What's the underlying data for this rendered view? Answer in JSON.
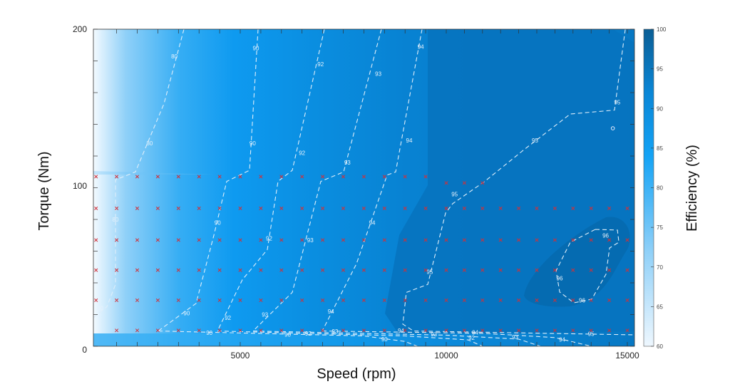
{
  "chart_data": {
    "type": "heatmap",
    "subtype": "filled contour efficiency map",
    "xlabel": "Speed (rpm)",
    "ylabel": "Torque (Nm)",
    "colorbar_label": "Efficiency (%)",
    "xlim": [
      1436,
      15200
    ],
    "ylim": [
      0,
      200
    ],
    "xticks": [
      5000,
      10000,
      15000
    ],
    "yticks": [
      0,
      100,
      200
    ],
    "colorbar_ticks": [
      60,
      65,
      70,
      75,
      80,
      85,
      90,
      95,
      100
    ],
    "colorbar_range": [
      60,
      100
    ],
    "colormap": [
      "#eef7fe",
      "#8fd0f8",
      "#14a3f5",
      "#0a86d6",
      "#0b5e95"
    ],
    "contours": [
      {
        "level": "80",
        "points": [
          [
            3633,
            200
          ],
          [
            3149,
            153
          ],
          [
            2457,
            110
          ],
          [
            1972,
            105
          ],
          [
            1972,
            39
          ],
          [
            1765,
            25
          ],
          [
            1436,
            18
          ]
        ],
        "labels": [
          [
            3400,
            183
          ],
          [
            2800,
            128
          ],
          [
            1972,
            80
          ],
          [
            1600,
            24
          ]
        ]
      },
      {
        "level": "90",
        "points": [
          [
            5433,
            200
          ],
          [
            5225,
            111
          ],
          [
            4671,
            104
          ],
          [
            4360,
            70
          ],
          [
            3927,
            27
          ],
          [
            3010,
            9.6
          ]
        ],
        "labels": [
          [
            5380,
            188
          ],
          [
            5300,
            128
          ],
          [
            4450,
            78
          ],
          [
            3700,
            21
          ]
        ]
      },
      {
        "level": "92",
        "points": [
          [
            7041,
            200
          ],
          [
            6263,
            111
          ],
          [
            5917,
            104
          ],
          [
            5657,
            61
          ],
          [
            5052,
            42
          ],
          [
            4446,
            9.6
          ]
        ],
        "labels": [
          [
            6950,
            178
          ],
          [
            6500,
            122
          ],
          [
            5700,
            68
          ],
          [
            4700,
            18
          ]
        ]
      },
      {
        "level": "93",
        "points": [
          [
            8425,
            200
          ],
          [
            7509,
            110
          ],
          [
            6955,
            104
          ],
          [
            6263,
            34
          ],
          [
            5311,
            9.6
          ]
        ],
        "labels": [
          [
            8350,
            172
          ],
          [
            7600,
            116
          ],
          [
            6700,
            67
          ],
          [
            5600,
            20
          ]
        ]
      },
      {
        "level": "94",
        "points": [
          [
            9412,
            200
          ],
          [
            8771,
            110
          ],
          [
            8564,
            108
          ],
          [
            7820,
            52
          ],
          [
            6990,
            9.6
          ]
        ],
        "labels": [
          [
            9380,
            189
          ],
          [
            9100,
            130
          ],
          [
            8200,
            78
          ],
          [
            7200,
            22
          ]
        ]
      },
      {
        "level": "95",
        "points": [
          [
            14942,
            200
          ],
          [
            14646,
            149
          ],
          [
            13426,
            146.5
          ],
          [
            12146,
            124
          ],
          [
            11063,
            104
          ],
          [
            10177,
            90
          ],
          [
            9983,
            84
          ],
          [
            9550,
            39
          ],
          [
            9031,
            34
          ],
          [
            8945,
            14
          ],
          [
            9204,
            9.6
          ],
          [
            15200,
            7.2
          ]
        ],
        "labels": [
          [
            14720,
            154
          ],
          [
            12450,
            130
          ],
          [
            10230,
            96
          ],
          [
            9600,
            47
          ],
          [
            14000,
            7.8
          ]
        ]
      },
      {
        "level": "96",
        "closed": true,
        "points": [
          [
            14115,
            73.7
          ],
          [
            14726,
            73.3
          ],
          [
            14765,
            65.6
          ],
          [
            14509,
            62
          ],
          [
            14410,
            45.4
          ],
          [
            14017,
            29.7
          ],
          [
            13524,
            27.4
          ],
          [
            13131,
            34.2
          ],
          [
            13032,
            47.6
          ],
          [
            13426,
            65.6
          ]
        ],
        "labels": [
          [
            14400,
            70
          ],
          [
            13130,
            43
          ],
          [
            13750,
            29
          ]
        ]
      },
      {
        "level": "90",
        "points": [
          [
            3010,
            9.6
          ],
          [
            8000,
            6.5
          ],
          [
            9000,
            3
          ],
          [
            9300,
            0
          ]
        ],
        "labels": [
          [
            4250,
            8.5
          ],
          [
            6150,
            7.4
          ],
          [
            8500,
            4.5
          ]
        ]
      },
      {
        "level": "92",
        "points": [
          [
            4446,
            9.6
          ],
          [
            9000,
            6.5
          ],
          [
            10600,
            4
          ],
          [
            11000,
            0
          ]
        ],
        "labels": [
          [
            6650,
            8.2
          ],
          [
            10700,
            5.5
          ]
        ]
      },
      {
        "level": "93",
        "points": [
          [
            5311,
            9.6
          ],
          [
            10000,
            7
          ],
          [
            12000,
            4.5
          ],
          [
            12600,
            0
          ]
        ],
        "labels": [
          [
            7300,
            9.4
          ],
          [
            9700,
            7.6
          ],
          [
            11900,
            5.8
          ]
        ]
      },
      {
        "level": "94",
        "points": [
          [
            6990,
            9.6
          ],
          [
            11000,
            8.2
          ],
          [
            13000,
            5.5
          ],
          [
            14000,
            0
          ]
        ],
        "labels": [
          [
            8900,
            9.8
          ],
          [
            10800,
            8.8
          ],
          [
            13200,
            4.2
          ]
        ]
      }
    ],
    "contour_label_texts": {
      "80": "80",
      "90": "90",
      "92": "92",
      "93": "93",
      "94": "94",
      "95": "95",
      "96": "96"
    },
    "operating_points": [
      {
        "torque": 10,
        "speeds": [
          2000,
          2500,
          3000,
          3500,
          4000,
          4500,
          5000,
          5500,
          6000,
          6500,
          7000,
          7500,
          8000,
          8500,
          9000,
          9500,
          10000,
          10500,
          11000,
          11500,
          12000,
          12500,
          13000,
          13500,
          14000,
          14500,
          15000
        ]
      },
      {
        "torque": 29,
        "speeds": [
          1500,
          2000,
          2500,
          3000,
          3500,
          4000,
          4500,
          5000,
          5500,
          6000,
          6500,
          7000,
          7500,
          8000,
          8500,
          9000,
          9500,
          10000,
          10500,
          11000,
          11500,
          12000,
          12500,
          13000,
          13500,
          14000,
          14500,
          15000
        ]
      },
      {
        "torque": 48,
        "speeds": [
          1500,
          2000,
          2500,
          3000,
          3500,
          4000,
          4500,
          5000,
          5500,
          6000,
          6500,
          7000,
          7500,
          8000,
          8500,
          9000,
          9500,
          10000,
          10500,
          11000,
          11500,
          12000,
          12500,
          13000,
          13500,
          14000,
          14500,
          15000
        ]
      },
      {
        "torque": 67,
        "speeds": [
          1500,
          2000,
          2500,
          3000,
          3500,
          4000,
          4500,
          5000,
          5500,
          6000,
          6500,
          7000,
          7500,
          8000,
          8500,
          9000,
          9500,
          10000,
          10500,
          11000,
          11500,
          12000,
          12500,
          13000,
          13500,
          14000,
          14500,
          15000
        ]
      },
      {
        "torque": 87,
        "speeds": [
          1500,
          2000,
          2500,
          3000,
          3500,
          4000,
          4500,
          5000,
          5500,
          6000,
          6500,
          7000,
          7500,
          8000,
          8500,
          9000,
          9500,
          10000,
          10500,
          11000,
          11500,
          12000,
          12500,
          13000,
          13500,
          14000,
          14500,
          15000
        ]
      },
      {
        "torque": 107,
        "speeds": [
          1500,
          2000,
          2500,
          3000,
          3500,
          4000,
          4500,
          5000,
          5500,
          6000,
          6500,
          7000,
          7500,
          8000,
          8500,
          9000,
          9500
        ]
      },
      {
        "torque": 103,
        "speeds": [
          10000,
          10500,
          11000
        ]
      }
    ],
    "peak_marker": {
      "speed": 14600,
      "torque": 137.5
    }
  }
}
